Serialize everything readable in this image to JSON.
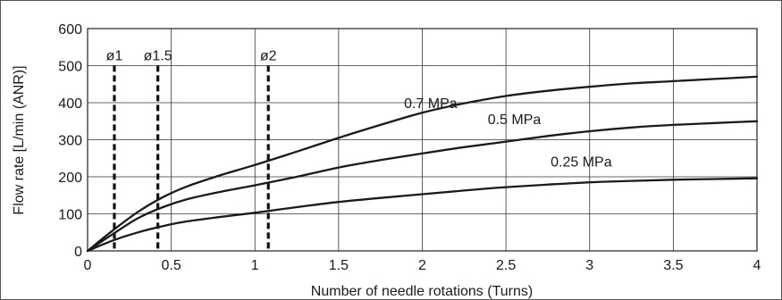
{
  "chart_data": {
    "type": "line",
    "xlabel": "Number of needle rotations (Turns)",
    "ylabel": "Flow rate [L/min (ANR)]",
    "xlim": [
      0,
      4
    ],
    "ylim": [
      0,
      600
    ],
    "x_ticks": [
      0,
      0.5,
      1,
      1.5,
      2,
      2.5,
      3,
      3.5,
      4
    ],
    "x_tick_labels": [
      "0",
      "0.5",
      "1",
      "1.5",
      "2",
      "2.5",
      "3",
      "3.5",
      "4"
    ],
    "y_ticks": [
      0,
      100,
      200,
      300,
      400,
      500,
      600
    ],
    "y_tick_labels": [
      "0",
      "100",
      "200",
      "300",
      "400",
      "500",
      "600"
    ],
    "grid": true,
    "series": [
      {
        "name": "0.7 MPa",
        "label_at": [
          2.05,
          385
        ],
        "x": [
          0,
          0.15,
          0.3,
          0.45,
          0.6,
          0.8,
          1.0,
          1.25,
          1.5,
          1.75,
          2.0,
          2.25,
          2.5,
          2.75,
          3.0,
          3.25,
          3.5,
          3.75,
          4.0
        ],
        "values": [
          0,
          55,
          105,
          145,
          175,
          205,
          232,
          268,
          305,
          340,
          373,
          398,
          418,
          432,
          443,
          452,
          458,
          464,
          470
        ]
      },
      {
        "name": "0.5 MPa",
        "label_at": [
          2.55,
          342
        ],
        "x": [
          0,
          0.15,
          0.3,
          0.45,
          0.6,
          0.8,
          1.0,
          1.25,
          1.5,
          1.75,
          2.0,
          2.25,
          2.5,
          2.75,
          3.0,
          3.25,
          3.5,
          3.75,
          4.0
        ],
        "values": [
          0,
          45,
          88,
          118,
          140,
          160,
          177,
          200,
          225,
          245,
          263,
          280,
          295,
          310,
          323,
          333,
          340,
          345,
          350
        ]
      },
      {
        "name": "0.25 MPa",
        "label_at": [
          2.95,
          228
        ],
        "x": [
          0,
          0.15,
          0.3,
          0.45,
          0.6,
          0.8,
          1.0,
          1.25,
          1.5,
          1.75,
          2.0,
          2.25,
          2.5,
          2.75,
          3.0,
          3.25,
          3.5,
          3.75,
          4.0
        ],
        "values": [
          0,
          28,
          50,
          67,
          80,
          92,
          103,
          118,
          132,
          143,
          153,
          163,
          172,
          179,
          185,
          189,
          192,
          194,
          196
        ]
      }
    ],
    "markers": [
      {
        "label": "ø1",
        "x": 0.16,
        "y_top": 510
      },
      {
        "label": "ø1.5",
        "x": 0.42,
        "y_top": 510
      },
      {
        "label": "ø2",
        "x": 1.08,
        "y_top": 510
      }
    ]
  }
}
